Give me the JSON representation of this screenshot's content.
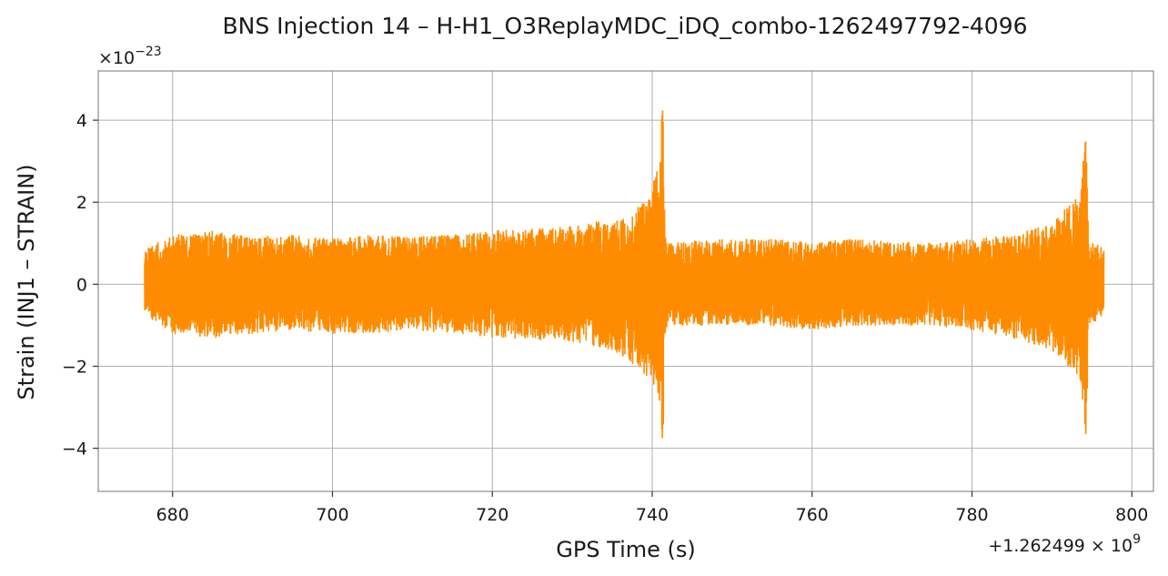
{
  "chart_data": {
    "type": "line",
    "title": "BNS Injection 14 – H-H1_O3ReplayMDC_iDQ_combo-1262497792-4096",
    "xlabel": "GPS Time (s)",
    "ylabel": "Strain (INJ1 – STRAIN)",
    "x_offset_label": "+1.262499 × 10",
    "x_offset_exponent": "9",
    "y_scale_label": "×10",
    "y_scale_exponent": "−23",
    "xlim": [
      670.7,
      802.7
    ],
    "ylim": [
      -5.05,
      5.2
    ],
    "xticks": [
      680,
      700,
      720,
      740,
      760,
      780,
      800
    ],
    "xtick_labels": [
      "680",
      "700",
      "720",
      "740",
      "760",
      "780",
      "800"
    ],
    "yticks": [
      -4,
      -2,
      0,
      2,
      4
    ],
    "ytick_labels": [
      "−4",
      "−2",
      "0",
      "2",
      "4"
    ],
    "grid": true,
    "series": [
      {
        "color": "#ff8c00",
        "x_start": 676.5,
        "x_end": 796.5,
        "envelope": {
          "x": [
            676.5,
            680,
            685,
            690,
            695,
            700,
            705,
            710,
            715,
            720,
            725,
            730,
            735,
            738,
            740,
            741,
            741.3,
            741.6,
            742,
            745,
            750,
            755,
            760,
            765,
            770,
            775,
            780,
            785,
            790,
            792,
            793.5,
            794.3,
            794.6,
            795,
            796.5
          ],
          "upper": [
            0.9,
            1.2,
            1.3,
            1.15,
            1.2,
            1.1,
            1.2,
            1.15,
            1.2,
            1.3,
            1.35,
            1.4,
            1.6,
            1.8,
            2.4,
            3.2,
            4.7,
            1.2,
            1.0,
            1.05,
            1.1,
            1.1,
            1.0,
            1.1,
            1.05,
            1.0,
            1.1,
            1.2,
            1.5,
            1.9,
            2.2,
            3.8,
            1.0,
            1.0,
            0.9
          ],
          "lower": [
            -0.8,
            -1.2,
            -1.3,
            -1.2,
            -1.1,
            -1.2,
            -1.2,
            -1.1,
            -1.2,
            -1.3,
            -1.35,
            -1.4,
            -1.6,
            -2.0,
            -2.4,
            -3.0,
            -4.55,
            -1.2,
            -1.0,
            -1.0,
            -1.0,
            -1.0,
            -1.1,
            -1.0,
            -1.0,
            -1.0,
            -1.1,
            -1.3,
            -1.6,
            -2.0,
            -2.4,
            -3.8,
            -1.0,
            -1.0,
            -0.7
          ]
        }
      }
    ]
  }
}
